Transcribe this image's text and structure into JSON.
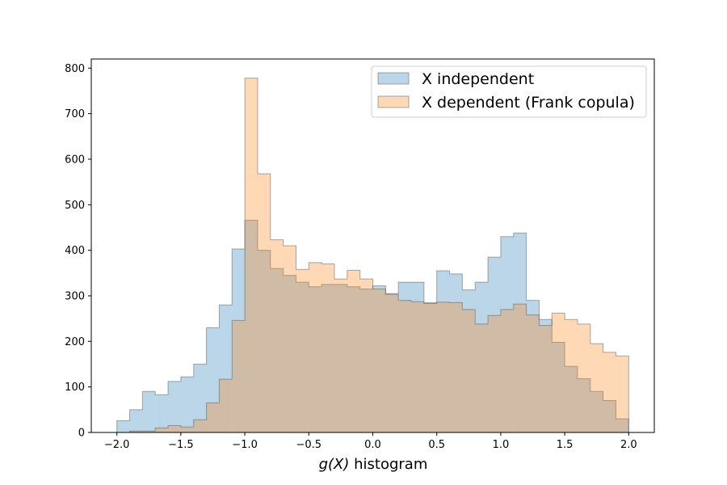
{
  "chart_data": {
    "type": "histogram",
    "title": "",
    "xlabel_math": "g(X)",
    "xlabel_text": " histogram",
    "ylabel": "",
    "xlim": [
      -2.2,
      2.2
    ],
    "ylim": [
      0,
      820
    ],
    "x_ticks": [
      -2.0,
      -1.5,
      -1.0,
      -0.5,
      0.0,
      0.5,
      1.0,
      1.5,
      2.0
    ],
    "x_tick_labels": [
      "−2.0",
      "−1.5",
      "−1.0",
      "−0.5",
      "0.0",
      "0.5",
      "1.0",
      "1.5",
      "2.0"
    ],
    "y_ticks": [
      0,
      100,
      200,
      300,
      400,
      500,
      600,
      700,
      800
    ],
    "y_tick_labels": [
      "0",
      "100",
      "200",
      "300",
      "400",
      "500",
      "600",
      "700",
      "800"
    ],
    "bins": {
      "start": -2.0,
      "end": 2.0,
      "count": 40
    },
    "legend_position": "top-right",
    "series": [
      {
        "name": "X independent",
        "color": "#1f77b4",
        "values": [
          26,
          50,
          90,
          83,
          112,
          122,
          150,
          230,
          280,
          403,
          466,
          400,
          360,
          345,
          330,
          320,
          325,
          325,
          320,
          315,
          322,
          305,
          330,
          330,
          285,
          355,
          348,
          313,
          330,
          385,
          430,
          438,
          290,
          248,
          198,
          145,
          118,
          90,
          70,
          30
        ]
      },
      {
        "name": "X dependent (Frank copula)",
        "color": "#ff7f0e",
        "values": [
          0,
          3,
          3,
          10,
          15,
          12,
          28,
          65,
          117,
          246,
          778,
          568,
          423,
          410,
          358,
          373,
          370,
          337,
          356,
          337,
          315,
          303,
          290,
          287,
          283,
          286,
          285,
          270,
          238,
          257,
          270,
          282,
          258,
          235,
          262,
          248,
          238,
          195,
          176,
          168
        ]
      }
    ]
  }
}
